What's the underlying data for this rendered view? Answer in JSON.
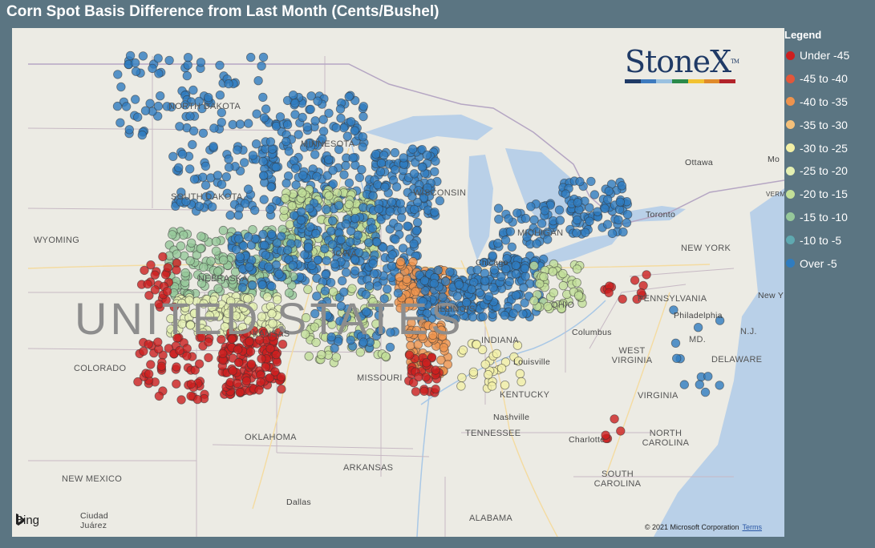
{
  "title": "Corn Spot Basis Difference from Last Month (Cents/Bushel)",
  "legend": {
    "title": "Legend",
    "items": [
      {
        "label": "Under -45",
        "color": "#cc1f1f"
      },
      {
        "label": "-45 to -40",
        "color": "#e2573a"
      },
      {
        "label": "-40 to -35",
        "color": "#ee934d"
      },
      {
        "label": "-35 to -30",
        "color": "#f4c07a"
      },
      {
        "label": "-30 to -25",
        "color": "#f3f0a6"
      },
      {
        "label": "-25 to -20",
        "color": "#e4f0b2"
      },
      {
        "label": "-20 to -15",
        "color": "#c2df98"
      },
      {
        "label": "-15 to -10",
        "color": "#96c89a"
      },
      {
        "label": "-10 to -5",
        "color": "#5fa9b0"
      },
      {
        "label": "Over -5",
        "color": "#2f7cbf"
      }
    ]
  },
  "logo": {
    "text": "StoneX",
    "tm": "TM",
    "stripe_colors": [
      "#1f3a66",
      "#3e7bbf",
      "#9ac1e0",
      "#2a8a4a",
      "#f2c230",
      "#e08a2a",
      "#b2232a"
    ]
  },
  "map": {
    "country_label": "UNITED STATES",
    "state_labels": [
      "NORTH DAKOTA",
      "MINNESOTA",
      "SOUTH DAKOTA",
      "WYOMING",
      "NEBRASKA",
      "IOWA",
      "WISCONSIN",
      "MICHIGAN",
      "COLORADO",
      "KANSAS",
      "MISSOURI",
      "ILLINOIS",
      "INDIANA",
      "OHIO",
      "OKLAHOMA",
      "ARKANSAS",
      "TENNESSEE",
      "KENTUCKY",
      "WEST VIRGINIA",
      "VIRGINIA",
      "NORTH CAROLINA",
      "SOUTH CAROLINA",
      "PENNSYLVANIA",
      "NEW YORK",
      "NEW MEXICO",
      "ALABAMA",
      "MD.",
      "DELAWARE",
      "N.J."
    ],
    "city_labels": [
      "Ottawa",
      "Toronto",
      "Chicago",
      "Columbus",
      "Louisville",
      "Nashville",
      "Charlotte",
      "Philadelphia",
      "Dallas",
      "Ciudad Juárez",
      "Mo",
      "New Y",
      "VERM"
    ],
    "attribution": {
      "provider": "Bing",
      "copyright": "© 2021 Microsoft Corporation",
      "terms": "Terms"
    }
  },
  "clusters": [
    {
      "name": "north-dakota",
      "color_index": 9,
      "count": 85,
      "lon_range": [
        -104,
        -96.5
      ],
      "lat_range": [
        46,
        49
      ]
    },
    {
      "name": "minnesota",
      "color_index": 9,
      "count": 170,
      "lon_range": [
        -97,
        -92
      ],
      "lat_range": [
        43.5,
        47.5
      ]
    },
    {
      "name": "south-dakota",
      "color_index": 9,
      "count": 70,
      "lon_range": [
        -101.5,
        -96.5
      ],
      "lat_range": [
        43,
        45.8
      ]
    },
    {
      "name": "iowa-green",
      "color_index": 6,
      "count": 180,
      "lon_range": [
        -96,
        -91.5
      ],
      "lat_range": [
        41.5,
        44
      ]
    },
    {
      "name": "iowa-blue",
      "color_index": 9,
      "count": 190,
      "lon_range": [
        -95.5,
        -89.5
      ],
      "lat_range": [
        40.5,
        43.5
      ]
    },
    {
      "name": "wisconsin",
      "color_index": 9,
      "count": 110,
      "lon_range": [
        -92,
        -88.5
      ],
      "lat_range": [
        43,
        45.5
      ]
    },
    {
      "name": "nebraska-green",
      "color_index": 7,
      "count": 160,
      "lon_range": [
        -101.5,
        -95.5
      ],
      "lat_range": [
        40,
        42.5
      ]
    },
    {
      "name": "nebraska-blue",
      "color_index": 9,
      "count": 70,
      "lon_range": [
        -98.5,
        -95.5
      ],
      "lat_range": [
        40.3,
        42.3
      ]
    },
    {
      "name": "kansas-light",
      "color_index": 5,
      "count": 120,
      "lon_range": [
        -101.5,
        -96
      ],
      "lat_range": [
        38.5,
        40
      ]
    },
    {
      "name": "kansas-red",
      "color_index": 0,
      "count": 140,
      "lon_range": [
        -99,
        -96
      ],
      "lat_range": [
        36.3,
        38.7
      ]
    },
    {
      "name": "sw-kansas-red",
      "color_index": 0,
      "count": 60,
      "lon_range": [
        -103,
        -99.5
      ],
      "lat_range": [
        36,
        38.5
      ]
    },
    {
      "name": "illinois-orange",
      "color_index": 2,
      "count": 80,
      "lon_range": [
        -90.5,
        -88
      ],
      "lat_range": [
        39.5,
        41.3
      ]
    },
    {
      "name": "illinois-blue",
      "color_index": 9,
      "count": 120,
      "lon_range": [
        -89.5,
        -86.5
      ],
      "lat_range": [
        39,
        41
      ]
    },
    {
      "name": "indiana-ohio-blue",
      "color_index": 9,
      "count": 110,
      "lon_range": [
        -86.5,
        -83.5
      ],
      "lat_range": [
        39.2,
        41.5
      ]
    },
    {
      "name": "michigan-blue",
      "color_index": 9,
      "count": 45,
      "lon_range": [
        -86,
        -83
      ],
      "lat_range": [
        41.8,
        43.5
      ]
    },
    {
      "name": "ontario-blue",
      "color_index": 9,
      "count": 80,
      "lon_range": [
        -82.8,
        -79.5
      ],
      "lat_range": [
        42.3,
        44.3
      ]
    },
    {
      "name": "ohio-light",
      "color_index": 6,
      "count": 50,
      "lon_range": [
        -84,
        -81.5
      ],
      "lat_range": [
        39.5,
        41.2
      ]
    },
    {
      "name": "s-illinois-orange",
      "color_index": 2,
      "count": 60,
      "lon_range": [
        -90,
        -88
      ],
      "lat_range": [
        37,
        39
      ]
    },
    {
      "name": "mo-red",
      "color_index": 0,
      "count": 30,
      "lon_range": [
        -90,
        -88.5
      ],
      "lat_range": [
        36.3,
        37.8
      ]
    },
    {
      "name": "missouri-mixed",
      "color_index": 6,
      "count": 70,
      "lon_range": [
        -95,
        -91
      ],
      "lat_range": [
        37.5,
        40.3
      ]
    },
    {
      "name": "missouri-blue",
      "color_index": 9,
      "count": 50,
      "lon_range": [
        -94.5,
        -90.5
      ],
      "lat_range": [
        38,
        40.5
      ]
    },
    {
      "name": "kentucky-mix",
      "color_index": 4,
      "count": 30,
      "lon_range": [
        -87.5,
        -84.5
      ],
      "lat_range": [
        36.5,
        38.5
      ]
    },
    {
      "name": "colorado-red",
      "color_index": 0,
      "count": 25,
      "lon_range": [
        -102.8,
        -101
      ],
      "lat_range": [
        39.5,
        41.5
      ]
    },
    {
      "name": "chesapeake-blue",
      "color_index": 9,
      "count": 12,
      "lon_range": [
        -77.5,
        -75
      ],
      "lat_range": [
        36.3,
        39.5
      ]
    },
    {
      "name": "pennsylvania-red",
      "color_index": 0,
      "count": 12,
      "lon_range": [
        -81,
        -78
      ],
      "lat_range": [
        39.8,
        41
      ]
    },
    {
      "name": "sc-red",
      "color_index": 0,
      "count": 5,
      "lon_range": [
        -81,
        -79
      ],
      "lat_range": [
        34,
        35.5
      ]
    }
  ]
}
